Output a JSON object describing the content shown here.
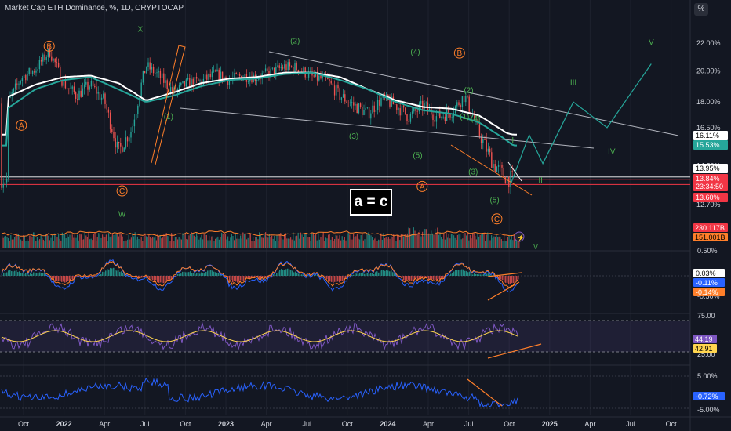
{
  "header": {
    "title": "Market Cap ETH Dominance, %, 1D, CRYPTOCAP"
  },
  "toolbar": {
    "percent_label": "%"
  },
  "callout": {
    "text": "a = c"
  },
  "chart_data": [
    {
      "type": "line",
      "title": "Market Cap ETH Dominance, %, 1D, CRYPTOCAP",
      "x_ticks": [
        "Oct",
        "2022",
        "Apr",
        "Jul",
        "Oct",
        "2023",
        "Apr",
        "Jul",
        "Oct",
        "2024",
        "Apr",
        "Jul",
        "Oct",
        "2025",
        "Apr",
        "Jul",
        "Oct"
      ],
      "y_ticks": [
        "22.00%",
        "20.00%",
        "18.00%",
        "16.50%",
        "14.50%",
        "12.70%"
      ],
      "ylim": [
        12.2,
        23.0
      ],
      "price_labels": [
        {
          "text": "16.11%",
          "bg": "#ffffff",
          "fg": "#000000",
          "y": 16.11
        },
        {
          "text": "15.53%",
          "bg": "#26a69a",
          "fg": "#ffffff",
          "y": 15.53
        },
        {
          "text": "13.95%",
          "bg": "#ffffff",
          "fg": "#000000",
          "y": 13.95
        },
        {
          "text": "13.84%",
          "bg": "#f23645",
          "fg": "#ffffff",
          "y": 13.84
        },
        {
          "text": "23:34:50",
          "bg": "#f23645",
          "fg": "#ffffff",
          "y": 13.63
        },
        {
          "text": "13.60%",
          "bg": "#f23645",
          "fg": "#ffffff",
          "y": 13.05
        }
      ],
      "series": [
        {
          "name": "ETH Dominance",
          "kind": "candles",
          "x": [
            "2021-10-01",
            "2021-11-01",
            "2021-12-01",
            "2022-01-01",
            "2022-02-01",
            "2022-03-01",
            "2022-04-01",
            "2022-05-01",
            "2022-06-01",
            "2022-07-01",
            "2022-08-01",
            "2022-09-01",
            "2022-10-01",
            "2022-11-01",
            "2022-12-01",
            "2023-01-01",
            "2023-02-01",
            "2023-03-01",
            "2023-04-01",
            "2023-05-01",
            "2023-06-01",
            "2023-07-01",
            "2023-08-01",
            "2023-09-01",
            "2023-10-01",
            "2023-11-01",
            "2023-12-01",
            "2024-01-01",
            "2024-02-01",
            "2024-03-01",
            "2024-04-01",
            "2024-05-01",
            "2024-06-01",
            "2024-07-01",
            "2024-08-01",
            "2024-09-01",
            "2024-10-01",
            "2024-10-15"
          ],
          "y": [
            17.9,
            19.6,
            20.1,
            21.4,
            19.2,
            18.4,
            19.1,
            18.1,
            15.2,
            16.4,
            20.4,
            19.6,
            18.6,
            19.2,
            19.3,
            19.8,
            19.4,
            19.7,
            19.6,
            19.9,
            20.3,
            20.2,
            19.6,
            19.4,
            18.4,
            17.8,
            17.3,
            18.2,
            17.8,
            17.1,
            17.8,
            17.1,
            17.4,
            18.4,
            16.2,
            14.6,
            13.9,
            13.84
          ]
        },
        {
          "name": "MA 1",
          "kind": "line",
          "color": "#ffffff",
          "x": [
            "2021-10-01",
            "2021-12-01",
            "2022-02-01",
            "2022-04-01",
            "2022-06-01",
            "2022-08-01",
            "2022-10-01",
            "2022-12-01",
            "2023-02-01",
            "2023-04-01",
            "2023-06-01",
            "2023-08-01",
            "2023-10-01",
            "2023-12-01",
            "2024-02-01",
            "2024-04-01",
            "2024-06-01",
            "2024-08-01",
            "2024-10-01",
            "2024-10-15"
          ],
          "y": [
            18.3,
            19.1,
            19.6,
            19.7,
            19.2,
            18.1,
            18.6,
            19.2,
            19.5,
            19.6,
            19.9,
            19.9,
            19.6,
            18.8,
            18.1,
            17.7,
            17.6,
            17.2,
            16.2,
            16.11
          ]
        },
        {
          "name": "MA 2",
          "kind": "line",
          "color": "#26a69a",
          "x": [
            "2021-10-01",
            "2021-12-01",
            "2022-02-01",
            "2022-04-01",
            "2022-06-01",
            "2022-08-01",
            "2022-10-01",
            "2022-12-01",
            "2023-02-01",
            "2023-04-01",
            "2023-06-01",
            "2023-08-01",
            "2023-10-01",
            "2023-12-01",
            "2024-02-01",
            "2024-04-01",
            "2024-06-01",
            "2024-08-01",
            "2024-10-01",
            "2024-10-15"
          ],
          "y": [
            17.6,
            18.8,
            19.4,
            19.6,
            18.8,
            18.0,
            18.4,
            19.0,
            19.4,
            19.5,
            19.8,
            19.9,
            19.4,
            18.8,
            18.0,
            17.5,
            17.3,
            16.8,
            15.8,
            15.53
          ]
        }
      ],
      "wave_labels": [
        {
          "text": "X",
          "color": "#4caf50",
          "date": "2022-07-20",
          "y": 22.9
        },
        {
          "text": "B",
          "color": "#ff7f2a",
          "circle": true,
          "date": "2022-01-01",
          "y": 21.6
        },
        {
          "text": "A",
          "color": "#ff7f2a",
          "circle": true,
          "date": "2021-11-01",
          "y": 16.5
        },
        {
          "text": "C",
          "color": "#ff7f2a",
          "circle": true,
          "date": "2022-06-10",
          "y": 13.2
        },
        {
          "text": "W",
          "color": "#4caf50",
          "date": "2022-06-10",
          "y": 12.2
        },
        {
          "text": "(1)",
          "color": "#4caf50",
          "date": "2022-09-20",
          "y": 17.0
        },
        {
          "text": "(2)",
          "color": "#4caf50",
          "date": "2023-06-25",
          "y": 22.0
        },
        {
          "text": "(3)",
          "color": "#4caf50",
          "date": "2023-11-01",
          "y": 15.9
        },
        {
          "text": "(4)",
          "color": "#4caf50",
          "date": "2024-03-15",
          "y": 21.2
        },
        {
          "text": "(5)",
          "color": "#4caf50",
          "date": "2024-03-20",
          "y": 14.9
        },
        {
          "text": "B",
          "color": "#ff7f2a",
          "circle": true,
          "date": "2024-06-20",
          "y": 21.1
        },
        {
          "text": "(2)",
          "color": "#4caf50",
          "date": "2024-07-10",
          "y": 18.6
        },
        {
          "text": "(1)",
          "color": "#4caf50",
          "date": "2024-07-01",
          "y": 17.0
        },
        {
          "text": "(4)",
          "color": "#4caf50",
          "date": "2024-07-25",
          "y": 16.9
        },
        {
          "text": "(3)",
          "color": "#4caf50",
          "date": "2024-07-20",
          "y": 14.1
        },
        {
          "text": "A",
          "color": "#ff7f2a",
          "circle": true,
          "date": "2024-03-30",
          "y": 13.4
        },
        {
          "text": "(5)",
          "color": "#4caf50",
          "date": "2024-09-05",
          "y": 12.8
        },
        {
          "text": "C",
          "color": "#ff7f2a",
          "circle": true,
          "date": "2024-09-10",
          "y": 12.0
        },
        {
          "text": "I",
          "color": "#4caf50",
          "date": "2024-10-15",
          "y": 15.7
        },
        {
          "text": "II",
          "color": "#4caf50",
          "date": "2024-12-15",
          "y": 13.7
        },
        {
          "text": "III",
          "color": "#4caf50",
          "date": "2025-02-25",
          "y": 19.1
        },
        {
          "text": "IV",
          "color": "#4caf50",
          "date": "2025-05-20",
          "y": 15.1
        },
        {
          "text": "V",
          "color": "#4caf50",
          "date": "2025-08-15",
          "y": 21.9
        }
      ],
      "projection": {
        "color": "#26a69a",
        "x": [
          "2024-10-12",
          "2024-11-20",
          "2024-12-20",
          "2025-02-25",
          "2025-05-10",
          "2025-08-15"
        ],
        "y": [
          13.7,
          16.1,
          14.6,
          18.0,
          16.5,
          20.5
        ]
      }
    },
    {
      "type": "bar",
      "title": "Volume",
      "values_labels": [
        {
          "text": "230.117B",
          "bg": "#f23645",
          "fg": "#ffffff"
        },
        {
          "text": "151.001B",
          "bg": "#ff7f2a",
          "fg": "#000000"
        }
      ],
      "wave_label": {
        "text": "V",
        "color": "#4caf50"
      }
    },
    {
      "type": "line",
      "title": "MACD",
      "y_ticks": [
        "0.50%",
        "-0.50%"
      ],
      "values_labels": [
        {
          "text": "0.03%",
          "bg": "#ffffff",
          "fg": "#000000"
        },
        {
          "text": "-0.11%",
          "bg": "#2962ff",
          "fg": "#ffffff"
        },
        {
          "text": "-0.14%",
          "bg": "#ff7f2a",
          "fg": "#ffffff"
        }
      ]
    },
    {
      "type": "line",
      "title": "RSI",
      "y_ticks": [
        "75.00",
        "25.00"
      ],
      "values_labels": [
        {
          "text": "44.19",
          "bg": "#7e57c2",
          "fg": "#ffffff"
        },
        {
          "text": "42.91",
          "bg": "#ffd54f",
          "fg": "#000000"
        }
      ]
    },
    {
      "type": "line",
      "title": "Oscillator",
      "y_ticks": [
        "5.00%",
        "-5.00%"
      ],
      "values_labels": [
        {
          "text": "-0.72%",
          "bg": "#2962ff",
          "fg": "#ffffff"
        }
      ]
    }
  ]
}
